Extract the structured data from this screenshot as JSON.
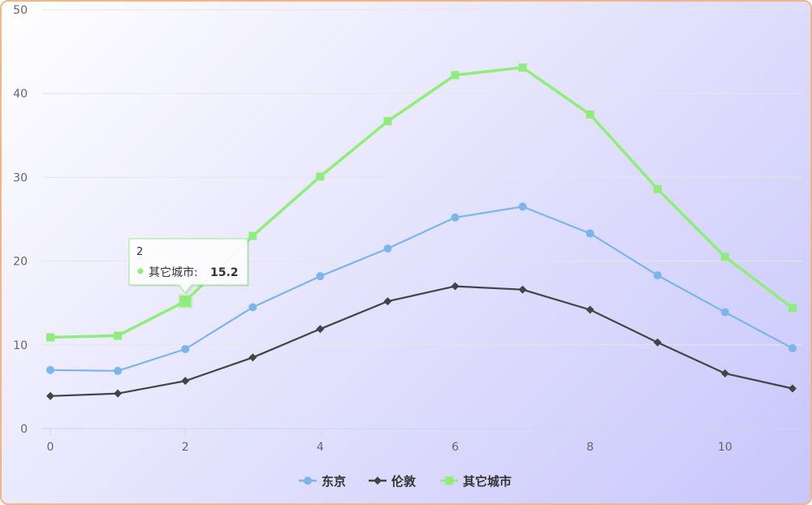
{
  "chart_data": {
    "type": "line",
    "x": [
      0,
      1,
      2,
      3,
      4,
      5,
      6,
      7,
      8,
      9,
      10,
      11
    ],
    "xlim": [
      0,
      11
    ],
    "ylim": [
      0,
      50
    ],
    "xticks": [
      0,
      2,
      4,
      6,
      8,
      10
    ],
    "yticks": [
      0,
      10,
      20,
      30,
      40,
      50
    ],
    "grid": true,
    "legend_position": "bottom-center",
    "series": [
      {
        "name": "东京",
        "color": "#7cb5ec",
        "marker": "circle",
        "values": [
          7.0,
          6.9,
          9.5,
          14.5,
          18.2,
          21.5,
          25.2,
          26.5,
          23.3,
          18.3,
          13.9,
          9.6
        ]
      },
      {
        "name": "伦敦",
        "color": "#434348",
        "marker": "diamond",
        "values": [
          3.9,
          4.2,
          5.7,
          8.5,
          11.9,
          15.2,
          17.0,
          16.6,
          14.2,
          10.3,
          6.6,
          4.8
        ]
      },
      {
        "name": "其它城市",
        "color": "#90ed7d",
        "marker": "square",
        "values": [
          10.9,
          11.1,
          15.2,
          23.0,
          30.1,
          36.7,
          42.2,
          43.1,
          37.5,
          28.6,
          20.5,
          14.4
        ]
      }
    ],
    "tooltip": {
      "series_index": 2,
      "point_index": 2,
      "x_label": "2",
      "series_name": "其它城市",
      "value_text": "15.2"
    }
  }
}
